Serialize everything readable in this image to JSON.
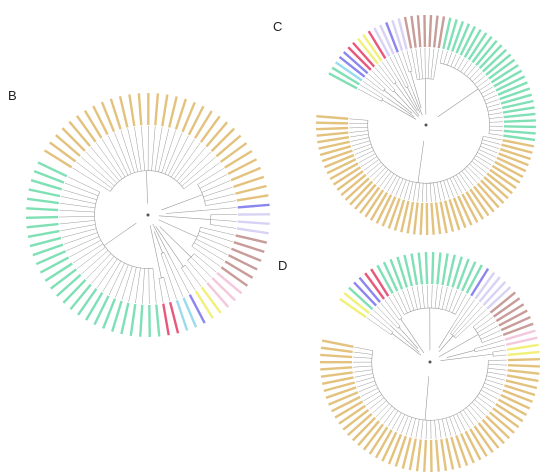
{
  "panels": {
    "b": {
      "label": "B"
    },
    "c": {
      "label": "C"
    },
    "d": {
      "label": "D"
    }
  },
  "colors": {
    "gold": "#e3c27e",
    "green": "#7fe0b5",
    "pink": "#e8587a",
    "yellow": "#f1f07a",
    "violet": "#8c86ef",
    "lavender": "#d8d3f4",
    "mauve": "#c89c98",
    "light_pink": "#f3c8dc",
    "cyan": "#9adcec",
    "branch": "#9a9a9a"
  },
  "trees": {
    "b": [
      {
        "clade": "gold",
        "leaves": 26
      },
      {
        "clade": "gold",
        "leaves": 6
      },
      {
        "clade": "violet",
        "leaves": 1
      },
      {
        "clade": "lavender",
        "leaves": 3
      },
      {
        "clade": "mauve",
        "leaves": 6
      },
      {
        "clade": "light_pink",
        "leaves": 3
      },
      {
        "clade": "yellow",
        "leaves": 2
      },
      {
        "clade": "violet",
        "leaves": 1
      },
      {
        "clade": "cyan",
        "leaves": 2
      },
      {
        "clade": "pink",
        "leaves": 2
      },
      {
        "clade": "green",
        "leaves": 28
      }
    ],
    "c": [
      {
        "clade": "green",
        "leaves": 2
      },
      {
        "clade": "cyan",
        "leaves": 1
      },
      {
        "clade": "violet",
        "leaves": 2
      },
      {
        "clade": "pink",
        "leaves": 2
      },
      {
        "clade": "yellow",
        "leaves": 2
      },
      {
        "clade": "pink",
        "leaves": 1
      },
      {
        "clade": "lavender",
        "leaves": 2
      },
      {
        "clade": "violet",
        "leaves": 1
      },
      {
        "clade": "lavender",
        "leaves": 2
      },
      {
        "clade": "mauve",
        "leaves": 7
      },
      {
        "clade": "green",
        "leaves": 26
      },
      {
        "clade": "gold",
        "leaves": 52
      }
    ],
    "d": [
      {
        "clade": "yellow",
        "leaves": 2
      },
      {
        "clade": "green",
        "leaves": 1
      },
      {
        "clade": "violet",
        "leaves": 2
      },
      {
        "clade": "pink",
        "leaves": 2
      },
      {
        "clade": "green",
        "leaves": 16
      },
      {
        "clade": "violet",
        "leaves": 1
      },
      {
        "clade": "lavender",
        "leaves": 4
      },
      {
        "clade": "mauve",
        "leaves": 6
      },
      {
        "clade": "light_pink",
        "leaves": 2
      },
      {
        "clade": "yellow",
        "leaves": 2
      },
      {
        "clade": "gold",
        "leaves": 52
      }
    ]
  }
}
